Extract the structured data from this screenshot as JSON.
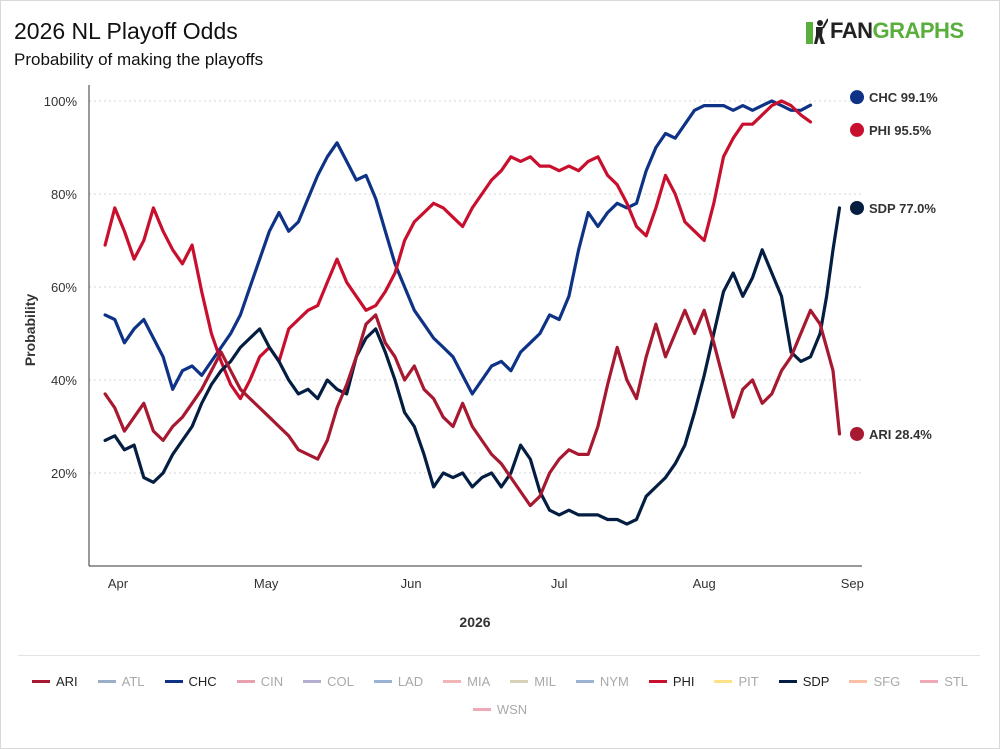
{
  "title": "2026 NL Playoff Odds",
  "subtitle": "Probability of making the playoffs",
  "logo": {
    "part1": "FAN",
    "part2": "GRAPHS"
  },
  "chart_data": {
    "type": "line",
    "title": "2026 NL Playoff Odds",
    "subtitle": "Probability of making the playoffs",
    "xlabel": "2026",
    "ylabel": "Probability",
    "x_ticks": [
      "Apr",
      "May",
      "Jun",
      "Jul",
      "Aug",
      "Sep"
    ],
    "y_ticks": [
      "20%",
      "40%",
      "60%",
      "80%",
      "100%"
    ],
    "ylim": [
      0,
      100
    ],
    "grid": true,
    "legend_position": "bottom",
    "series": [
      {
        "name": "CHC",
        "color": "#0e3386",
        "end_label": "CHC 99.1%",
        "points": [
          [
            0,
            54
          ],
          [
            3,
            53
          ],
          [
            6,
            48
          ],
          [
            9,
            51
          ],
          [
            12,
            53
          ],
          [
            15,
            49
          ],
          [
            18,
            45
          ],
          [
            21,
            38
          ],
          [
            24,
            42
          ],
          [
            27,
            43
          ],
          [
            30,
            41
          ],
          [
            33,
            44
          ],
          [
            36,
            47
          ],
          [
            39,
            50
          ],
          [
            42,
            54
          ],
          [
            45,
            60
          ],
          [
            48,
            66
          ],
          [
            51,
            72
          ],
          [
            54,
            76
          ],
          [
            57,
            72
          ],
          [
            60,
            74
          ],
          [
            63,
            79
          ],
          [
            66,
            84
          ],
          [
            69,
            88
          ],
          [
            72,
            91
          ],
          [
            75,
            87
          ],
          [
            78,
            83
          ],
          [
            81,
            84
          ],
          [
            84,
            79
          ],
          [
            87,
            72
          ],
          [
            90,
            65
          ],
          [
            93,
            60
          ],
          [
            96,
            55
          ],
          [
            99,
            52
          ],
          [
            102,
            49
          ],
          [
            105,
            47
          ],
          [
            108,
            45
          ],
          [
            111,
            41
          ],
          [
            114,
            37
          ],
          [
            117,
            40
          ],
          [
            120,
            43
          ],
          [
            123,
            44
          ],
          [
            126,
            42
          ],
          [
            129,
            46
          ],
          [
            132,
            48
          ],
          [
            135,
            50
          ],
          [
            138,
            54
          ],
          [
            141,
            53
          ],
          [
            144,
            58
          ],
          [
            147,
            68
          ],
          [
            150,
            76
          ],
          [
            153,
            73
          ],
          [
            156,
            76
          ],
          [
            159,
            78
          ],
          [
            162,
            77
          ],
          [
            165,
            78
          ],
          [
            168,
            85
          ],
          [
            171,
            90
          ],
          [
            174,
            93
          ],
          [
            177,
            92
          ],
          [
            180,
            95
          ],
          [
            183,
            98
          ],
          [
            186,
            99
          ],
          [
            189,
            99
          ],
          [
            192,
            99
          ],
          [
            195,
            98
          ],
          [
            198,
            99
          ],
          [
            201,
            98
          ],
          [
            204,
            99
          ],
          [
            207,
            100
          ],
          [
            210,
            99
          ],
          [
            213,
            98
          ],
          [
            216,
            98
          ],
          [
            219,
            99.1
          ]
        ]
      },
      {
        "name": "PHI",
        "color": "#c8102e",
        "end_label": "PHI 95.5%",
        "points": [
          [
            0,
            69
          ],
          [
            3,
            77
          ],
          [
            6,
            72
          ],
          [
            9,
            66
          ],
          [
            12,
            70
          ],
          [
            15,
            77
          ],
          [
            18,
            72
          ],
          [
            21,
            68
          ],
          [
            24,
            65
          ],
          [
            27,
            69
          ],
          [
            30,
            59
          ],
          [
            33,
            50
          ],
          [
            36,
            44
          ],
          [
            39,
            39
          ],
          [
            42,
            36
          ],
          [
            45,
            40
          ],
          [
            48,
            45
          ],
          [
            51,
            47
          ],
          [
            54,
            44
          ],
          [
            57,
            51
          ],
          [
            60,
            53
          ],
          [
            63,
            55
          ],
          [
            66,
            56
          ],
          [
            69,
            61
          ],
          [
            72,
            66
          ],
          [
            75,
            61
          ],
          [
            78,
            58
          ],
          [
            81,
            55
          ],
          [
            84,
            56
          ],
          [
            87,
            59
          ],
          [
            90,
            63
          ],
          [
            93,
            70
          ],
          [
            96,
            74
          ],
          [
            99,
            76
          ],
          [
            102,
            78
          ],
          [
            105,
            77
          ],
          [
            108,
            75
          ],
          [
            111,
            73
          ],
          [
            114,
            77
          ],
          [
            117,
            80
          ],
          [
            120,
            83
          ],
          [
            123,
            85
          ],
          [
            126,
            88
          ],
          [
            129,
            87
          ],
          [
            132,
            88
          ],
          [
            135,
            86
          ],
          [
            138,
            86
          ],
          [
            141,
            85
          ],
          [
            144,
            86
          ],
          [
            147,
            85
          ],
          [
            150,
            87
          ],
          [
            153,
            88
          ],
          [
            156,
            84
          ],
          [
            159,
            82
          ],
          [
            162,
            78
          ],
          [
            165,
            73
          ],
          [
            168,
            71
          ],
          [
            171,
            77
          ],
          [
            174,
            84
          ],
          [
            177,
            80
          ],
          [
            180,
            74
          ],
          [
            183,
            72
          ],
          [
            186,
            70
          ],
          [
            189,
            78
          ],
          [
            192,
            88
          ],
          [
            195,
            92
          ],
          [
            198,
            95
          ],
          [
            201,
            95
          ],
          [
            204,
            97
          ],
          [
            207,
            99
          ],
          [
            210,
            100
          ],
          [
            213,
            99
          ],
          [
            216,
            97
          ],
          [
            219,
            95.5
          ]
        ]
      },
      {
        "name": "SDP",
        "color": "#041e42",
        "end_label": "SDP 77.0%",
        "points": [
          [
            0,
            27
          ],
          [
            3,
            28
          ],
          [
            6,
            25
          ],
          [
            9,
            26
          ],
          [
            12,
            19
          ],
          [
            15,
            18
          ],
          [
            18,
            20
          ],
          [
            21,
            24
          ],
          [
            24,
            27
          ],
          [
            27,
            30
          ],
          [
            30,
            35
          ],
          [
            33,
            39
          ],
          [
            36,
            42
          ],
          [
            39,
            44
          ],
          [
            42,
            47
          ],
          [
            45,
            49
          ],
          [
            48,
            51
          ],
          [
            51,
            47
          ],
          [
            54,
            44
          ],
          [
            57,
            40
          ],
          [
            60,
            37
          ],
          [
            63,
            38
          ],
          [
            66,
            36
          ],
          [
            69,
            40
          ],
          [
            72,
            38
          ],
          [
            75,
            37
          ],
          [
            78,
            45
          ],
          [
            81,
            49
          ],
          [
            84,
            51
          ],
          [
            87,
            46
          ],
          [
            90,
            40
          ],
          [
            93,
            33
          ],
          [
            96,
            30
          ],
          [
            99,
            24
          ],
          [
            102,
            17
          ],
          [
            105,
            20
          ],
          [
            108,
            19
          ],
          [
            111,
            20
          ],
          [
            114,
            17
          ],
          [
            117,
            19
          ],
          [
            120,
            20
          ],
          [
            123,
            17
          ],
          [
            126,
            20
          ],
          [
            129,
            26
          ],
          [
            132,
            23
          ],
          [
            135,
            16
          ],
          [
            138,
            12
          ],
          [
            141,
            11
          ],
          [
            144,
            12
          ],
          [
            147,
            11
          ],
          [
            150,
            11
          ],
          [
            153,
            11
          ],
          [
            156,
            10
          ],
          [
            159,
            10
          ],
          [
            162,
            9
          ],
          [
            165,
            10
          ],
          [
            168,
            15
          ],
          [
            171,
            17
          ],
          [
            174,
            19
          ],
          [
            177,
            22
          ],
          [
            180,
            26
          ],
          [
            183,
            33
          ],
          [
            186,
            41
          ],
          [
            189,
            50
          ],
          [
            192,
            59
          ],
          [
            195,
            63
          ],
          [
            198,
            58
          ],
          [
            201,
            62
          ],
          [
            204,
            68
          ],
          [
            207,
            63
          ],
          [
            210,
            58
          ],
          [
            213,
            46
          ],
          [
            216,
            44
          ],
          [
            219,
            45
          ],
          [
            222,
            50
          ],
          [
            224,
            58
          ],
          [
            226,
            68
          ],
          [
            228,
            77
          ]
        ]
      },
      {
        "name": "ARI",
        "color": "#a71930",
        "end_label": "ARI 28.4%",
        "points": [
          [
            0,
            37
          ],
          [
            3,
            34
          ],
          [
            6,
            29
          ],
          [
            9,
            32
          ],
          [
            12,
            35
          ],
          [
            15,
            29
          ],
          [
            18,
            27
          ],
          [
            21,
            30
          ],
          [
            24,
            32
          ],
          [
            27,
            35
          ],
          [
            30,
            38
          ],
          [
            33,
            42
          ],
          [
            36,
            46
          ],
          [
            39,
            42
          ],
          [
            42,
            38
          ],
          [
            45,
            36
          ],
          [
            48,
            34
          ],
          [
            51,
            32
          ],
          [
            54,
            30
          ],
          [
            57,
            28
          ],
          [
            60,
            25
          ],
          [
            63,
            24
          ],
          [
            66,
            23
          ],
          [
            69,
            27
          ],
          [
            72,
            34
          ],
          [
            75,
            39
          ],
          [
            78,
            45
          ],
          [
            81,
            52
          ],
          [
            84,
            54
          ],
          [
            87,
            48
          ],
          [
            90,
            45
          ],
          [
            93,
            40
          ],
          [
            96,
            43
          ],
          [
            99,
            38
          ],
          [
            102,
            36
          ],
          [
            105,
            32
          ],
          [
            108,
            30
          ],
          [
            111,
            35
          ],
          [
            114,
            30
          ],
          [
            117,
            27
          ],
          [
            120,
            24
          ],
          [
            123,
            22
          ],
          [
            126,
            19
          ],
          [
            129,
            16
          ],
          [
            132,
            13
          ],
          [
            135,
            15
          ],
          [
            138,
            20
          ],
          [
            141,
            23
          ],
          [
            144,
            25
          ],
          [
            147,
            24
          ],
          [
            150,
            24
          ],
          [
            153,
            30
          ],
          [
            156,
            39
          ],
          [
            159,
            47
          ],
          [
            162,
            40
          ],
          [
            165,
            36
          ],
          [
            168,
            45
          ],
          [
            171,
            52
          ],
          [
            174,
            45
          ],
          [
            177,
            50
          ],
          [
            180,
            55
          ],
          [
            183,
            50
          ],
          [
            186,
            55
          ],
          [
            189,
            48
          ],
          [
            192,
            40
          ],
          [
            195,
            32
          ],
          [
            198,
            38
          ],
          [
            201,
            40
          ],
          [
            204,
            35
          ],
          [
            207,
            37
          ],
          [
            210,
            42
          ],
          [
            213,
            45
          ],
          [
            216,
            50
          ],
          [
            219,
            55
          ],
          [
            222,
            52
          ],
          [
            224,
            47
          ],
          [
            226,
            42
          ],
          [
            228,
            28.4
          ]
        ]
      }
    ],
    "legend": [
      {
        "name": "ARI",
        "color": "#a71930",
        "active": true
      },
      {
        "name": "ATL",
        "color": "#9aaec8",
        "active": false
      },
      {
        "name": "CHC",
        "color": "#0e3386",
        "active": true
      },
      {
        "name": "CIN",
        "color": "#eaa1ae",
        "active": false
      },
      {
        "name": "COL",
        "color": "#b3afd1",
        "active": false
      },
      {
        "name": "LAD",
        "color": "#9ab3d4",
        "active": false
      },
      {
        "name": "MIA",
        "color": "#f2b5b5",
        "active": false
      },
      {
        "name": "MIL",
        "color": "#d9d0b8",
        "active": false
      },
      {
        "name": "NYM",
        "color": "#9db3d4",
        "active": false
      },
      {
        "name": "PHI",
        "color": "#c8102e",
        "active": true
      },
      {
        "name": "PIT",
        "color": "#fce38a",
        "active": false
      },
      {
        "name": "SDP",
        "color": "#041e42",
        "active": true
      },
      {
        "name": "SFG",
        "color": "#f9c0a6",
        "active": false
      },
      {
        "name": "STL",
        "color": "#eeaab6",
        "active": false
      },
      {
        "name": "WSN",
        "color": "#efaab8",
        "active": false
      }
    ]
  }
}
